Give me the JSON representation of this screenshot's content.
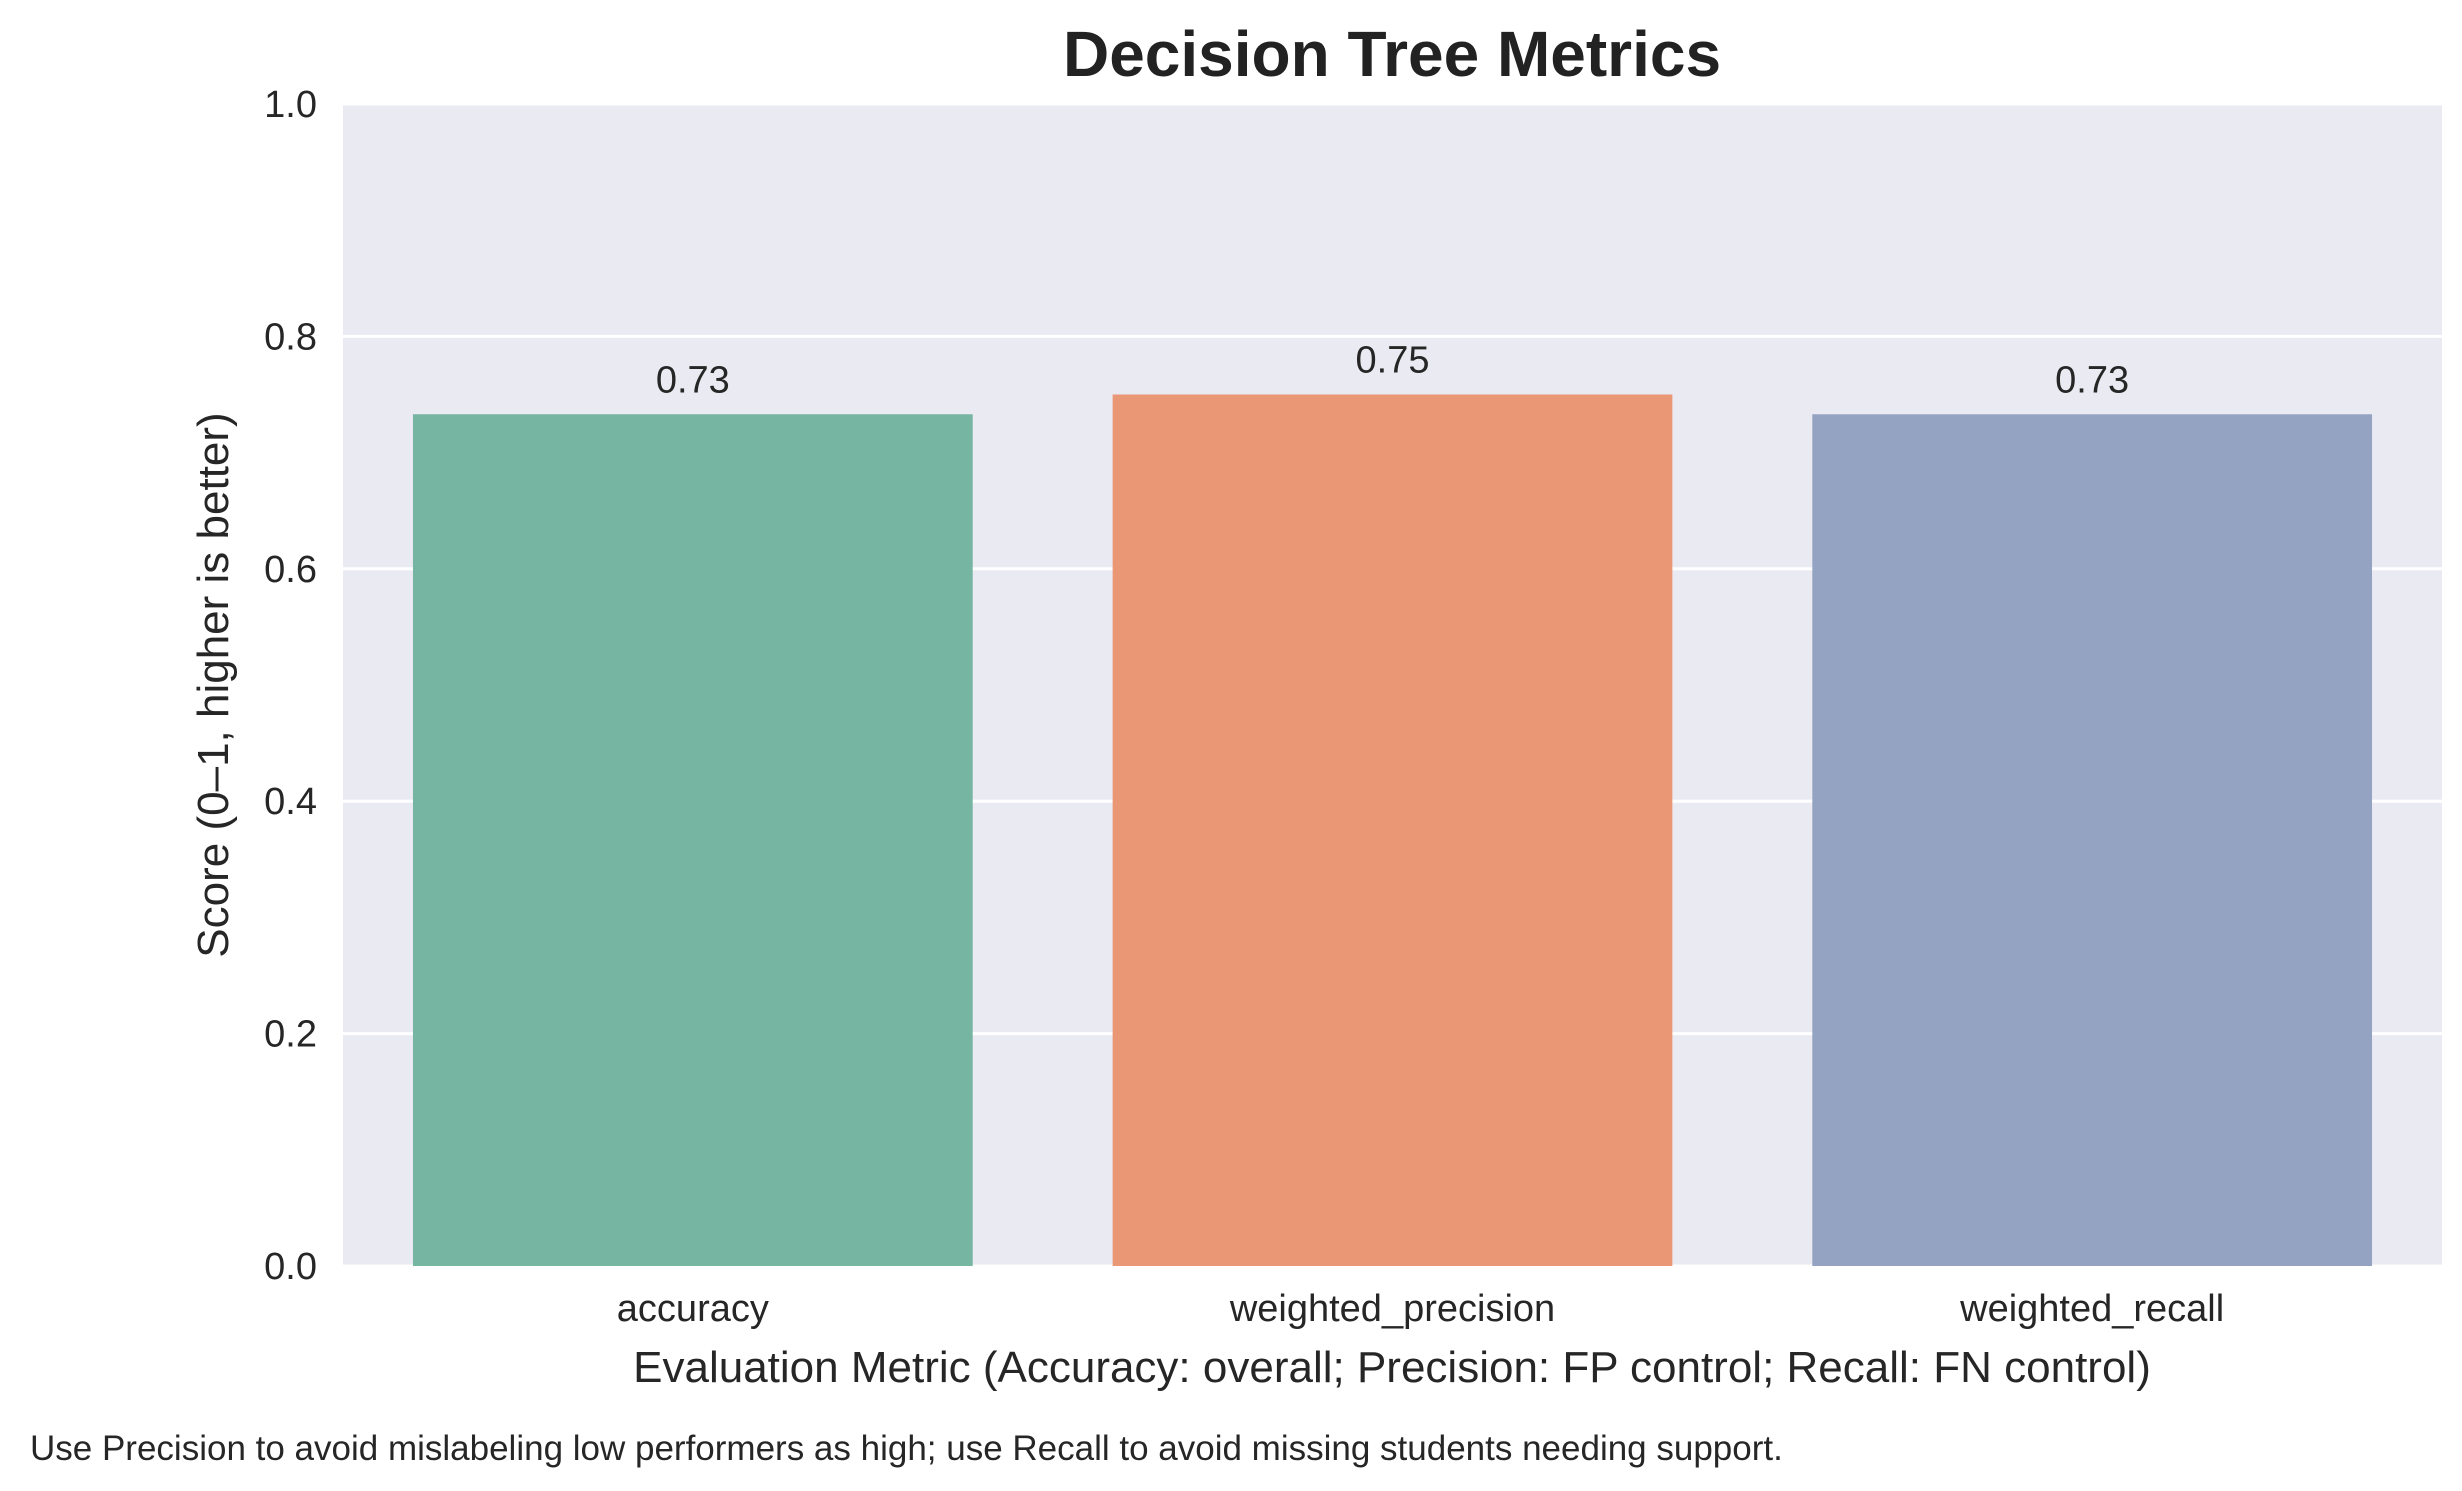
{
  "chart_data": {
    "type": "bar",
    "title": "Decision Tree Metrics",
    "xlabel": "Evaluation Metric (Accuracy: overall; Precision: FP control; Recall: FN control)",
    "ylabel": "Score (0–1, higher is better)",
    "categories": [
      "accuracy",
      "weighted_precision",
      "weighted_recall"
    ],
    "values": [
      0.733,
      0.75,
      0.733
    ],
    "data_labels": [
      "0.73",
      "0.75",
      "0.73"
    ],
    "colors": [
      "#76b5a1",
      "#e99775",
      "#95a3c2"
    ],
    "ylim": [
      0,
      1
    ],
    "yticks": [
      0.0,
      0.2,
      0.4,
      0.6,
      0.8,
      1.0
    ],
    "ytick_labels": [
      "0.0",
      "0.2",
      "0.4",
      "0.6",
      "0.8",
      "1.0"
    ],
    "grid": true,
    "background": "#eaeaf2",
    "footnote": "Use Precision to avoid mislabeling low performers as high; use Recall to avoid missing students needing support."
  }
}
